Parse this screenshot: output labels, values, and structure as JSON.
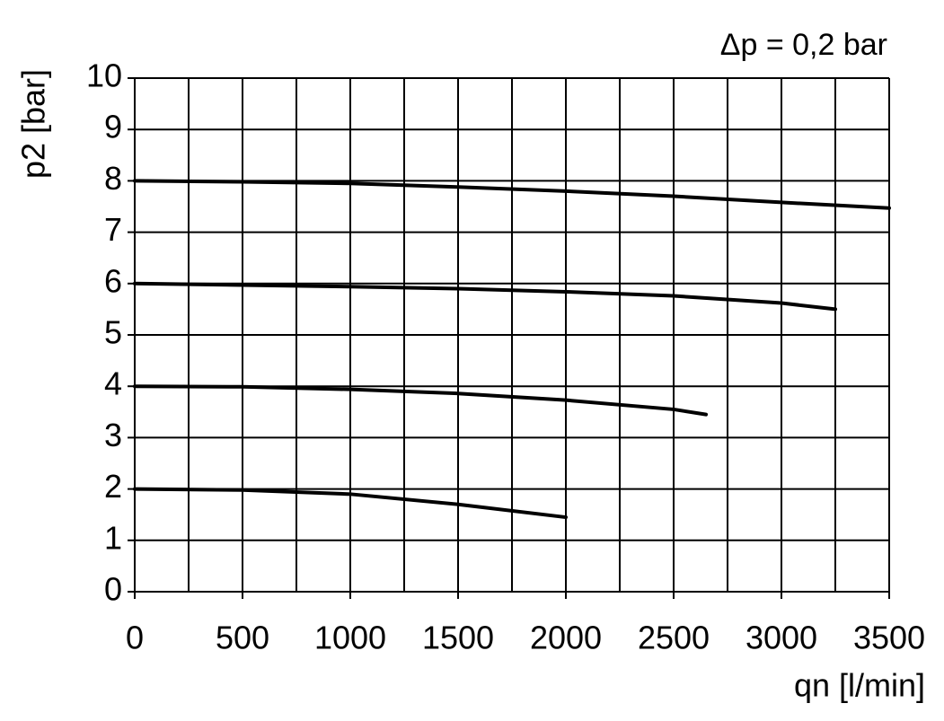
{
  "chart_data": {
    "type": "line",
    "annotation": "Δp = 0,2 bar",
    "x_label": "qn [l/min]",
    "y_label": "p2 [bar]",
    "xlim": [
      0,
      3500
    ],
    "xticks": [
      0,
      500,
      1000,
      1500,
      2000,
      2500,
      3000,
      3500
    ],
    "x_minor_ticks": [
      250,
      750,
      1250,
      1750,
      2250,
      2750,
      3250
    ],
    "ylim": [
      0,
      10
    ],
    "yticks": [
      0,
      1,
      2,
      3,
      4,
      5,
      6,
      7,
      8,
      9,
      10
    ],
    "grid": true,
    "series": [
      {
        "color": "#000000",
        "x": [
          0,
          500,
          1000,
          1500,
          2000,
          2500,
          3000,
          3500
        ],
        "values": [
          8,
          7.98,
          7.95,
          7.88,
          7.8,
          7.7,
          7.58,
          7.47
        ]
      },
      {
        "color": "#000000",
        "x": [
          0,
          500,
          1000,
          1500,
          2000,
          2500,
          3000,
          3250
        ],
        "values": [
          6,
          5.97,
          5.94,
          5.9,
          5.84,
          5.76,
          5.62,
          5.5
        ]
      },
      {
        "color": "#000000",
        "x": [
          0,
          500,
          1000,
          1500,
          2000,
          2500,
          2650
        ],
        "values": [
          4,
          3.99,
          3.94,
          3.86,
          3.73,
          3.55,
          3.45
        ]
      },
      {
        "color": "#000000",
        "x": [
          0,
          500,
          1000,
          1500,
          2000
        ],
        "values": [
          2,
          1.98,
          1.9,
          1.7,
          1.45
        ]
      }
    ]
  }
}
